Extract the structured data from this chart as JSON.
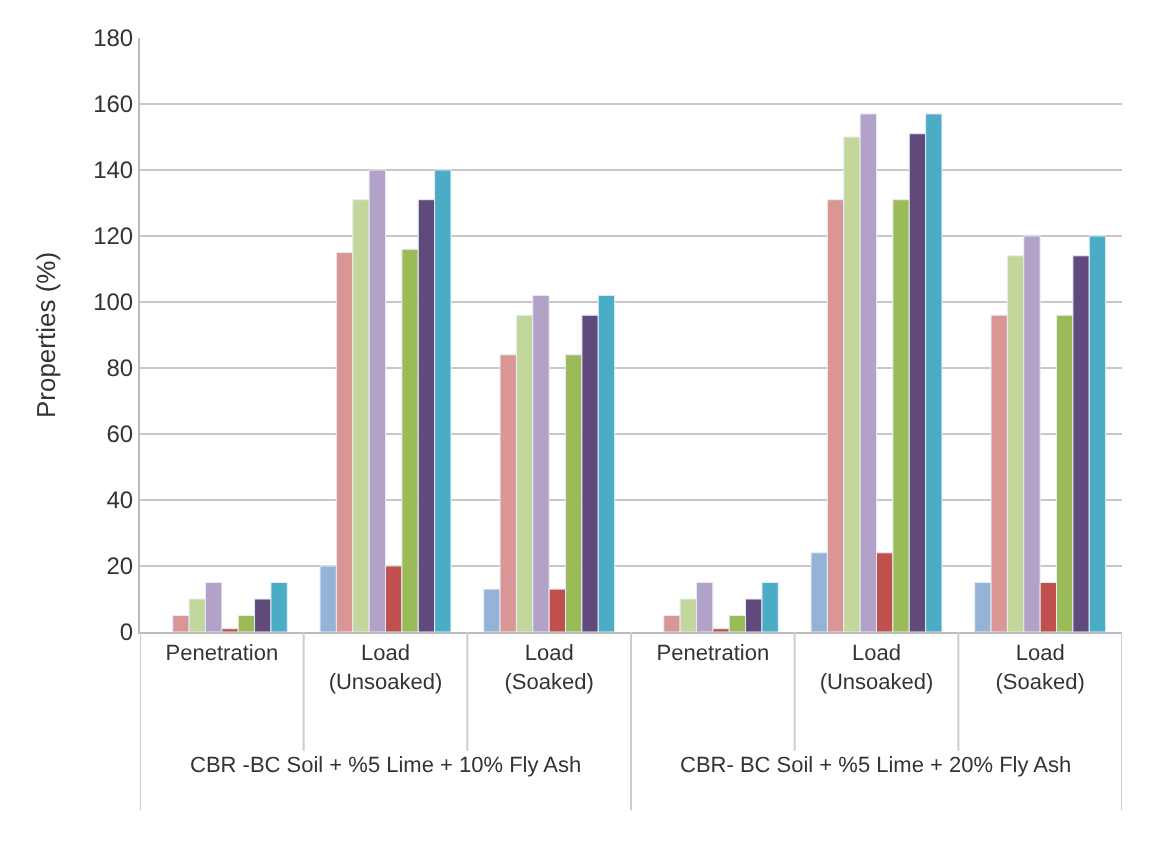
{
  "chart_data": {
    "type": "bar",
    "ylabel": "Properties (%)",
    "categories": [
      "Penetration",
      "Load (Unsoaked)",
      "Load (Soaked)",
      "Penetration",
      "Load (Unsoaked)",
      "Load (Soaked)"
    ],
    "series": [
      {
        "color": "#95b3d7",
        "values": [
          null,
          20,
          13,
          null,
          24,
          15
        ]
      },
      {
        "color": "#d99694",
        "values": [
          5,
          115,
          84,
          5,
          131,
          96
        ]
      },
      {
        "color": "#c3d69b",
        "values": [
          10,
          131,
          96,
          10,
          150,
          114
        ]
      },
      {
        "color": "#b3a2c7",
        "values": [
          15,
          140,
          102,
          15,
          157,
          120
        ]
      },
      {
        "color": "#c0504d",
        "values": [
          1,
          20,
          13,
          1,
          24,
          15
        ]
      },
      {
        "color": "#9bbb59",
        "values": [
          5,
          116,
          84,
          5,
          131,
          96
        ]
      },
      {
        "color": "#604a7b",
        "values": [
          10,
          131,
          96,
          10,
          151,
          114
        ]
      },
      {
        "color": "#4bacc6",
        "values": [
          15,
          140,
          102,
          15,
          157,
          120
        ]
      }
    ],
    "ylim": [
      0,
      180
    ],
    "yticks": [
      0,
      20,
      40,
      60,
      80,
      100,
      120,
      140,
      160,
      180
    ],
    "grid": "y",
    "legend": false,
    "annotations": [
      "CBR -BC Soil + %5 Lime + 10% Fly Ash",
      "CBR- BC Soil + %5 Lime + 20% Fly Ash"
    ]
  }
}
